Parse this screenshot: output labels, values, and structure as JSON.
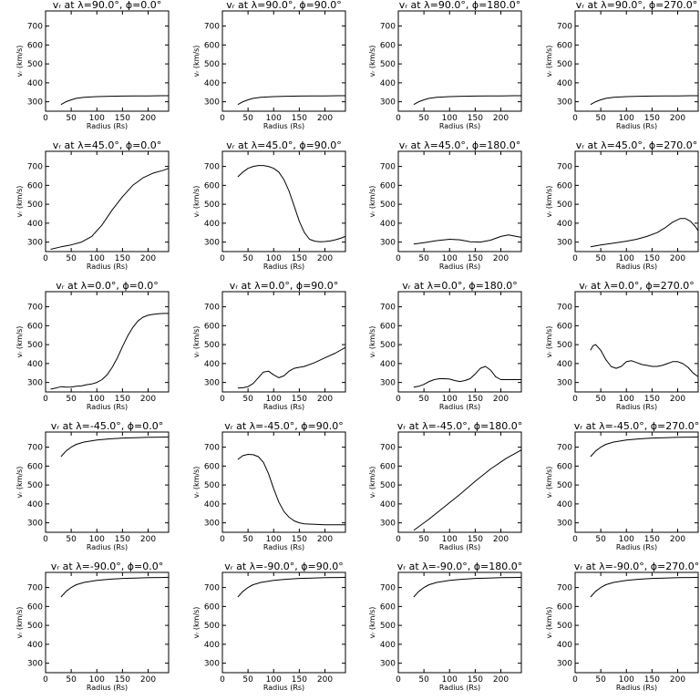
{
  "figure": {
    "xlabel": "Radius (Rs)",
    "ylabel": "vᵣ (km/s)",
    "xlim": [
      0,
      240
    ],
    "ylim": [
      250,
      780
    ],
    "xticks": [
      0,
      50,
      100,
      150,
      200
    ],
    "yticks": [
      300,
      400,
      500,
      600,
      700
    ],
    "line_color": "#000000"
  },
  "chart_data": [
    {
      "type": "line",
      "title": "vᵣ at λ=90.0°, ϕ=0.0°",
      "xlabel": "Radius (Rs)",
      "ylabel": "vᵣ (km/s)",
      "xlim": [
        0,
        240
      ],
      "ylim": [
        250,
        780
      ],
      "x": [
        30,
        40,
        50,
        60,
        75,
        100,
        125,
        150,
        175,
        200,
        225,
        240
      ],
      "y": [
        285,
        300,
        310,
        318,
        323,
        327,
        329,
        330,
        331,
        331,
        332,
        332
      ]
    },
    {
      "type": "line",
      "title": "vᵣ at λ=90.0°, ϕ=90.0°",
      "xlabel": "Radius (Rs)",
      "ylabel": "vᵣ (km/s)",
      "xlim": [
        0,
        240
      ],
      "ylim": [
        250,
        780
      ],
      "x": [
        30,
        40,
        50,
        60,
        75,
        100,
        125,
        150,
        175,
        200,
        225,
        240
      ],
      "y": [
        285,
        300,
        310,
        318,
        323,
        327,
        329,
        330,
        331,
        331,
        332,
        332
      ]
    },
    {
      "type": "line",
      "title": "vᵣ at λ=90.0°, ϕ=180.0°",
      "xlabel": "Radius (Rs)",
      "ylabel": "vᵣ (km/s)",
      "xlim": [
        0,
        240
      ],
      "ylim": [
        250,
        780
      ],
      "x": [
        30,
        40,
        50,
        60,
        75,
        100,
        125,
        150,
        175,
        200,
        225,
        240
      ],
      "y": [
        285,
        300,
        310,
        318,
        323,
        327,
        329,
        330,
        331,
        331,
        332,
        332
      ]
    },
    {
      "type": "line",
      "title": "vᵣ at λ=90.0°, ϕ=270.0°",
      "xlabel": "Radius (Rs)",
      "ylabel": "vᵣ (km/s)",
      "xlim": [
        0,
        240
      ],
      "ylim": [
        250,
        780
      ],
      "x": [
        30,
        40,
        50,
        60,
        75,
        100,
        125,
        150,
        175,
        200,
        225,
        240
      ],
      "y": [
        285,
        300,
        310,
        318,
        323,
        327,
        329,
        330,
        331,
        331,
        332,
        332
      ]
    },
    {
      "type": "line",
      "title": "vᵣ at λ=45.0°, ϕ=0.0°",
      "xlabel": "Radius (Rs)",
      "ylabel": "vᵣ (km/s)",
      "xlim": [
        0,
        240
      ],
      "ylim": [
        250,
        780
      ],
      "x": [
        10,
        30,
        50,
        70,
        90,
        110,
        130,
        150,
        170,
        190,
        210,
        230,
        240
      ],
      "y": [
        262,
        275,
        285,
        300,
        330,
        390,
        470,
        540,
        600,
        640,
        665,
        680,
        690
      ]
    },
    {
      "type": "line",
      "title": "vᵣ at λ=45.0°, ϕ=90.0°",
      "xlabel": "Radius (Rs)",
      "ylabel": "vᵣ (km/s)",
      "xlim": [
        0,
        240
      ],
      "ylim": [
        250,
        780
      ],
      "x": [
        30,
        40,
        50,
        60,
        70,
        80,
        90,
        100,
        110,
        120,
        130,
        140,
        150,
        160,
        170,
        180,
        190,
        200,
        210,
        220,
        230,
        240
      ],
      "y": [
        645,
        670,
        690,
        700,
        705,
        705,
        700,
        690,
        670,
        630,
        570,
        490,
        410,
        350,
        315,
        305,
        302,
        303,
        306,
        312,
        320,
        330
      ]
    },
    {
      "type": "line",
      "title": "vᵣ at λ=45.0°, ϕ=180.0°",
      "xlabel": "Radius (Rs)",
      "ylabel": "vᵣ (km/s)",
      "xlim": [
        0,
        240
      ],
      "ylim": [
        250,
        780
      ],
      "x": [
        30,
        50,
        75,
        100,
        120,
        140,
        160,
        180,
        200,
        215,
        230,
        240
      ],
      "y": [
        290,
        297,
        308,
        315,
        312,
        302,
        300,
        310,
        330,
        338,
        330,
        325
      ]
    },
    {
      "type": "line",
      "title": "vᵣ at λ=45.0°, ϕ=270.0°",
      "xlabel": "Radius (Rs)",
      "ylabel": "vᵣ (km/s)",
      "xlim": [
        0,
        240
      ],
      "ylim": [
        250,
        780
      ],
      "x": [
        30,
        50,
        75,
        100,
        120,
        140,
        160,
        175,
        190,
        205,
        215,
        225,
        235,
        240
      ],
      "y": [
        275,
        285,
        295,
        305,
        315,
        330,
        350,
        375,
        405,
        425,
        425,
        410,
        380,
        360
      ]
    },
    {
      "type": "line",
      "title": "vᵣ at λ=0.0°, ϕ=0.0°",
      "xlabel": "Radius (Rs)",
      "ylabel": "vᵣ (km/s)",
      "xlim": [
        0,
        240
      ],
      "ylim": [
        250,
        780
      ],
      "x": [
        10,
        20,
        30,
        40,
        50,
        60,
        70,
        80,
        90,
        100,
        110,
        120,
        130,
        140,
        150,
        160,
        170,
        180,
        190,
        200,
        210,
        220,
        230,
        240
      ],
      "y": [
        265,
        270,
        278,
        275,
        276,
        280,
        282,
        288,
        292,
        300,
        315,
        340,
        380,
        430,
        490,
        545,
        590,
        625,
        645,
        655,
        660,
        663,
        665,
        665
      ]
    },
    {
      "type": "line",
      "title": "vᵣ at λ=0.0°, ϕ=90.0°",
      "xlabel": "Radius (Rs)",
      "ylabel": "vᵣ (km/s)",
      "xlim": [
        0,
        240
      ],
      "ylim": [
        250,
        780
      ],
      "x": [
        30,
        40,
        50,
        60,
        70,
        80,
        90,
        100,
        110,
        120,
        130,
        140,
        150,
        160,
        180,
        200,
        220,
        240
      ],
      "y": [
        270,
        272,
        278,
        295,
        325,
        355,
        360,
        340,
        325,
        335,
        360,
        375,
        380,
        385,
        405,
        430,
        455,
        485
      ]
    },
    {
      "type": "line",
      "title": "vᵣ at λ=0.0°, ϕ=180.0°",
      "xlabel": "Radius (Rs)",
      "ylabel": "vᵣ (km/s)",
      "xlim": [
        0,
        240
      ],
      "ylim": [
        250,
        780
      ],
      "x": [
        30,
        40,
        50,
        60,
        70,
        80,
        90,
        100,
        110,
        120,
        130,
        140,
        150,
        160,
        170,
        180,
        190,
        200,
        220,
        240
      ],
      "y": [
        275,
        280,
        290,
        305,
        315,
        320,
        320,
        318,
        310,
        305,
        310,
        320,
        345,
        375,
        385,
        365,
        330,
        315,
        315,
        315
      ]
    },
    {
      "type": "line",
      "title": "vᵣ at λ=0.0°, ϕ=270.0°",
      "xlabel": "Radius (Rs)",
      "ylabel": "vᵣ (km/s)",
      "xlim": [
        0,
        240
      ],
      "ylim": [
        250,
        780
      ],
      "x": [
        30,
        35,
        40,
        50,
        60,
        70,
        80,
        90,
        100,
        110,
        120,
        130,
        140,
        150,
        160,
        170,
        180,
        190,
        200,
        210,
        220,
        230,
        240
      ],
      "y": [
        470,
        495,
        500,
        470,
        420,
        385,
        375,
        385,
        410,
        415,
        405,
        395,
        390,
        385,
        385,
        390,
        400,
        410,
        410,
        400,
        380,
        350,
        330
      ]
    },
    {
      "type": "line",
      "title": "vᵣ at λ=-45.0°, ϕ=0.0°",
      "xlabel": "Radius (Rs)",
      "ylabel": "vᵣ (km/s)",
      "xlim": [
        0,
        240
      ],
      "ylim": [
        250,
        780
      ],
      "x": [
        30,
        40,
        50,
        60,
        75,
        100,
        125,
        150,
        175,
        200,
        225,
        240
      ],
      "y": [
        650,
        680,
        700,
        715,
        727,
        738,
        744,
        748,
        750,
        752,
        753,
        754
      ]
    },
    {
      "type": "line",
      "title": "vᵣ at λ=-45.0°, ϕ=90.0°",
      "xlabel": "Radius (Rs)",
      "ylabel": "vᵣ (km/s)",
      "xlim": [
        0,
        240
      ],
      "ylim": [
        250,
        780
      ],
      "x": [
        30,
        40,
        50,
        60,
        70,
        80,
        90,
        100,
        110,
        120,
        130,
        140,
        150,
        160,
        180,
        200,
        220,
        240
      ],
      "y": [
        635,
        655,
        662,
        660,
        650,
        620,
        560,
        480,
        410,
        360,
        330,
        310,
        300,
        295,
        292,
        290,
        290,
        290
      ]
    },
    {
      "type": "line",
      "title": "vᵣ at λ=-45.0°, ϕ=180.0°",
      "xlabel": "Radius (Rs)",
      "ylabel": "vᵣ (km/s)",
      "xlim": [
        0,
        240
      ],
      "ylim": [
        250,
        780
      ],
      "x": [
        30,
        60,
        90,
        120,
        150,
        180,
        210,
        240
      ],
      "y": [
        260,
        320,
        385,
        450,
        520,
        585,
        640,
        685
      ]
    },
    {
      "type": "line",
      "title": "vᵣ at λ=-45.0°, ϕ=270.0°",
      "xlabel": "Radius (Rs)",
      "ylabel": "vᵣ (km/s)",
      "xlim": [
        0,
        240
      ],
      "ylim": [
        250,
        780
      ],
      "x": [
        30,
        40,
        50,
        60,
        75,
        100,
        125,
        150,
        175,
        200,
        225,
        240
      ],
      "y": [
        650,
        680,
        700,
        715,
        727,
        738,
        744,
        748,
        750,
        752,
        753,
        754
      ]
    },
    {
      "type": "line",
      "title": "vᵣ at λ=-90.0°, ϕ=0.0°",
      "xlabel": "Radius (Rs)",
      "ylabel": "vᵣ (km/s)",
      "xlim": [
        0,
        240
      ],
      "ylim": [
        250,
        780
      ],
      "x": [
        30,
        40,
        50,
        60,
        75,
        100,
        125,
        150,
        175,
        200,
        225,
        240
      ],
      "y": [
        650,
        680,
        700,
        715,
        727,
        738,
        744,
        748,
        750,
        752,
        753,
        754
      ]
    },
    {
      "type": "line",
      "title": "vᵣ at λ=-90.0°, ϕ=90.0°",
      "xlabel": "Radius (Rs)",
      "ylabel": "vᵣ (km/s)",
      "xlim": [
        0,
        240
      ],
      "ylim": [
        250,
        780
      ],
      "x": [
        30,
        40,
        50,
        60,
        75,
        100,
        125,
        150,
        175,
        200,
        225,
        240
      ],
      "y": [
        650,
        680,
        700,
        715,
        727,
        738,
        744,
        748,
        750,
        752,
        753,
        754
      ]
    },
    {
      "type": "line",
      "title": "vᵣ at λ=-90.0°, ϕ=180.0°",
      "xlabel": "Radius (Rs)",
      "ylabel": "vᵣ (km/s)",
      "xlim": [
        0,
        240
      ],
      "ylim": [
        250,
        780
      ],
      "x": [
        30,
        40,
        50,
        60,
        75,
        100,
        125,
        150,
        175,
        200,
        225,
        240
      ],
      "y": [
        650,
        680,
        700,
        715,
        727,
        738,
        744,
        748,
        750,
        752,
        753,
        754
      ]
    },
    {
      "type": "line",
      "title": "vᵣ at λ=-90.0°, ϕ=270.0°",
      "xlabel": "Radius (Rs)",
      "ylabel": "vᵣ (km/s)",
      "xlim": [
        0,
        240
      ],
      "ylim": [
        250,
        780
      ],
      "x": [
        30,
        40,
        50,
        60,
        75,
        100,
        125,
        150,
        175,
        200,
        225,
        240
      ],
      "y": [
        650,
        680,
        700,
        715,
        727,
        738,
        744,
        748,
        750,
        752,
        753,
        754
      ]
    }
  ]
}
